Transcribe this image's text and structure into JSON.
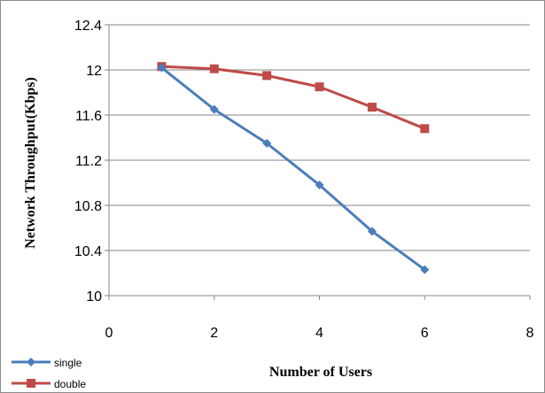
{
  "chart_data": {
    "type": "line",
    "title": "",
    "xlabel": "Number of Users",
    "ylabel": "Network Throughput(Kbps)",
    "xlim": [
      0,
      8
    ],
    "ylim": [
      10,
      12.4
    ],
    "x_ticks": [
      0,
      2,
      4,
      6,
      8
    ],
    "y_ticks": [
      10,
      10.4,
      10.8,
      11.2,
      11.6,
      12,
      12.4
    ],
    "x_tick_labels": [
      "0",
      "2",
      "4",
      "6",
      "8"
    ],
    "y_tick_labels": [
      "10",
      "10.4",
      "10.8",
      "11.2",
      "11.6",
      "12",
      "12.4"
    ],
    "grid": {
      "horizontal": true,
      "vertical": false,
      "color": "#868686"
    },
    "legend": {
      "position": "bottom-left"
    },
    "series": [
      {
        "name": "single",
        "color": "#4a7ebb",
        "marker": "diamond",
        "x": [
          1,
          2,
          3,
          4,
          5,
          6
        ],
        "y": [
          12.02,
          11.65,
          11.35,
          10.98,
          10.57,
          10.23
        ]
      },
      {
        "name": "double",
        "color": "#be4b48",
        "marker": "square",
        "x": [
          1,
          2,
          3,
          4,
          5,
          6
        ],
        "y": [
          12.03,
          12.01,
          11.95,
          11.85,
          11.67,
          11.48
        ]
      }
    ]
  }
}
